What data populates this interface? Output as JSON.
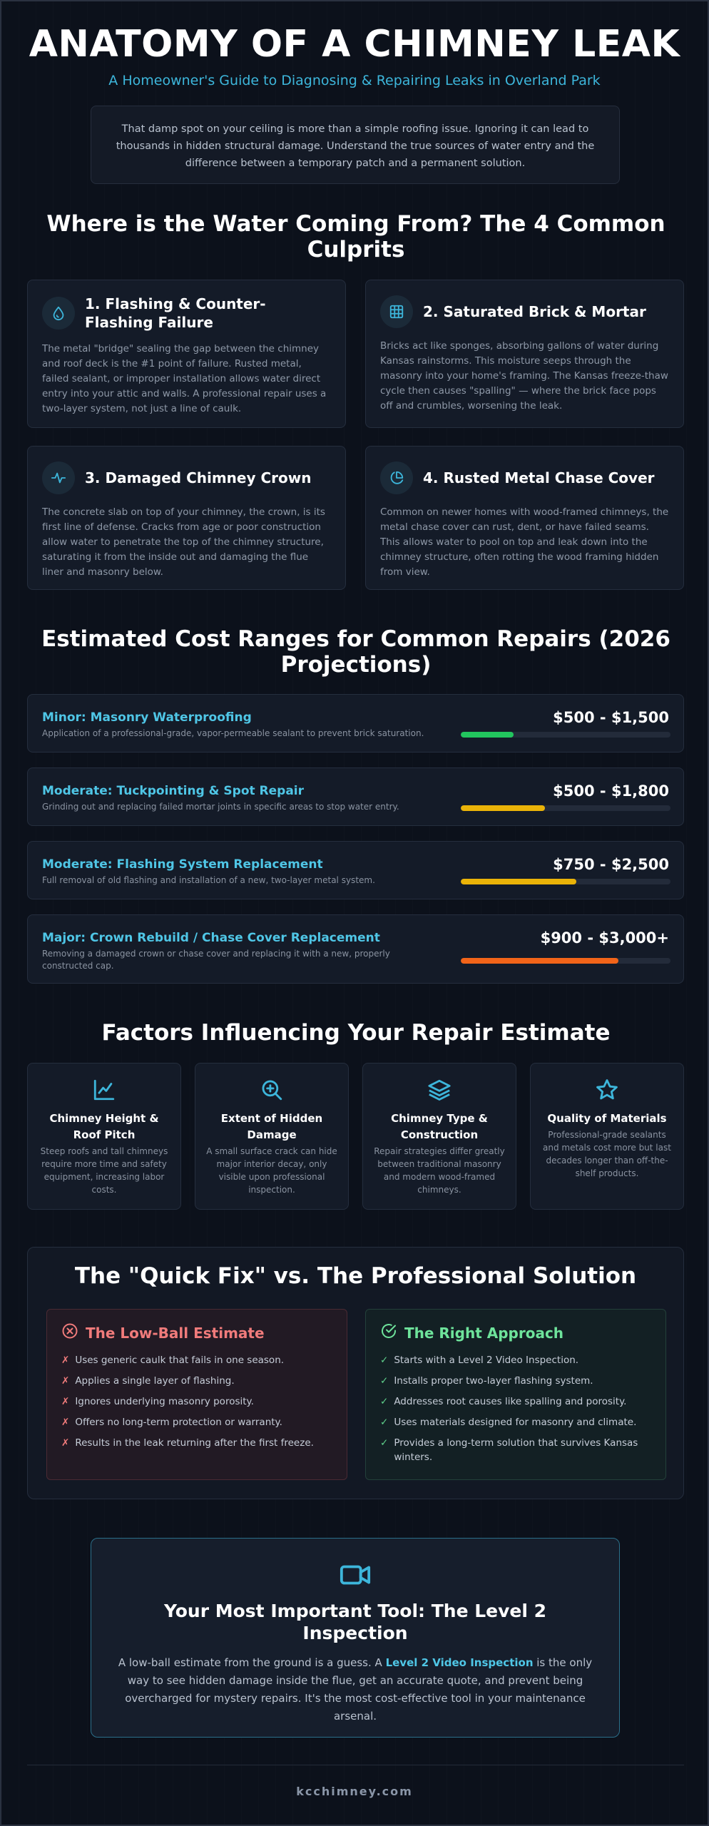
{
  "header": {
    "title": "ANATOMY OF A CHIMNEY LEAK",
    "subtitle": "A Homeowner's Guide to Diagnosing & Repairing Leaks in Overland Park",
    "intro": "That damp spot on your ceiling is more than a simple roofing issue. Ignoring it can lead to thousands in hidden structural damage. Understand the true sources of water entry and the difference between a temporary patch and a permanent solution."
  },
  "culprits": {
    "title": "Where is the Water Coming From? The 4 Common Culprits",
    "items": [
      {
        "title": "1. Flashing & Counter-Flashing Failure",
        "icon": "water-drop-icon",
        "text": "The metal \"bridge\" sealing the gap between the chimney and roof deck is the #1 point of failure. Rusted metal, failed sealant, or improper installation allows water direct entry into your attic and walls. A professional repair uses a two-layer system, not just a line of caulk."
      },
      {
        "title": "2. Saturated Brick & Mortar",
        "icon": "brick-grid-icon",
        "text": "Bricks act like sponges, absorbing gallons of water during Kansas rainstorms. This moisture seeps through the masonry into your home's framing. The Kansas freeze-thaw cycle then causes \"spalling\" — where the brick face pops off and crumbles, worsening the leak."
      },
      {
        "title": "3. Damaged Chimney Crown",
        "icon": "pulse-icon",
        "text": "The concrete slab on top of your chimney, the crown, is its first line of defense. Cracks from age or poor construction allow water to penetrate the top of the chimney structure, saturating it from the inside out and damaging the flue liner and masonry below."
      },
      {
        "title": "4. Rusted Metal Chase Cover",
        "icon": "pie-chart-icon",
        "text": "Common on newer homes with wood-framed chimneys, the metal chase cover can rust, dent, or have failed seams. This allows water to pool on top and leak down into the chimney structure, often rotting the wood framing hidden from view."
      }
    ]
  },
  "costs": {
    "title": "Estimated Cost Ranges for Common Repairs (2026 Projections)",
    "items": [
      {
        "label": "Minor: Masonry Waterproofing",
        "desc": "Application of a professional-grade, vapor-permeable sealant to prevent brick saturation.",
        "price": "$500 - $1,500",
        "level": 0.25,
        "color": "#22c55e"
      },
      {
        "label": "Moderate: Tuckpointing & Spot Repair",
        "desc": "Grinding out and replacing failed mortar joints in specific areas to stop water entry.",
        "price": "$500 - $1,800",
        "level": 0.4,
        "color": "#eab308"
      },
      {
        "label": "Moderate: Flashing System Replacement",
        "desc": "Full removal of old flashing and installation of a new, two-layer metal system.",
        "price": "$750 - $2,500",
        "level": 0.55,
        "color": "#eab308"
      },
      {
        "label": "Major: Crown Rebuild / Chase Cover Replacement",
        "desc": "Removing a damaged crown or chase cover and replacing it with a new, properly constructed cap.",
        "price": "$900 - $3,000+",
        "level": 0.75,
        "color": "#f26419"
      }
    ]
  },
  "factors": {
    "title": "Factors Influencing Your Repair Estimate",
    "items": [
      {
        "title": "Chimney Height & Roof Pitch",
        "icon": "rising-chart-icon",
        "text": "Steep roofs and tall chimneys require more time and safety equipment, increasing labor costs."
      },
      {
        "title": "Extent of Hidden Damage",
        "icon": "zoom-in-icon",
        "text": "A small surface crack can hide major interior decay, only visible upon professional inspection."
      },
      {
        "title": "Chimney Type & Construction",
        "icon": "layers-icon",
        "text": "Repair strategies differ greatly between traditional masonry and modern wood-framed chimneys."
      },
      {
        "title": "Quality of Materials",
        "icon": "star-icon",
        "text": "Professional-grade sealants and metals cost more but last decades longer than off-the-shelf products."
      }
    ]
  },
  "compare": {
    "title": "The \"Quick Fix\" vs. The Professional Solution",
    "bad": {
      "title": "The Low-Ball Estimate",
      "mark": "✗",
      "items": [
        "Uses generic caulk that fails in one season.",
        "Applies a single layer of flashing.",
        "Ignores underlying masonry porosity.",
        "Offers no long-term protection or warranty.",
        "Results in the leak returning after the first freeze."
      ]
    },
    "good": {
      "title": "The Right Approach",
      "mark": "✓",
      "items": [
        "Starts with a Level 2 Video Inspection.",
        "Installs proper two-layer flashing system.",
        "Addresses root causes like spalling and porosity.",
        "Uses materials designed for masonry and climate.",
        "Provides a long-term solution that survives Kansas winters."
      ]
    }
  },
  "tool": {
    "title": "Your Most Important Tool: The Level 2 Inspection",
    "text_before": "A low-ball estimate from the ground is a guess. A ",
    "highlight": "Level 2 Video Inspection",
    "text_after": " is the only way to see hidden damage inside the flue, get an accurate quote, and prevent being overcharged for mystery repairs. It's the most cost-effective tool in your maintenance arsenal."
  },
  "footer": {
    "text": "kcchimney.com"
  },
  "colors": {
    "accent": "#3db6db",
    "background": "#0c111b",
    "card": "#141b28"
  }
}
